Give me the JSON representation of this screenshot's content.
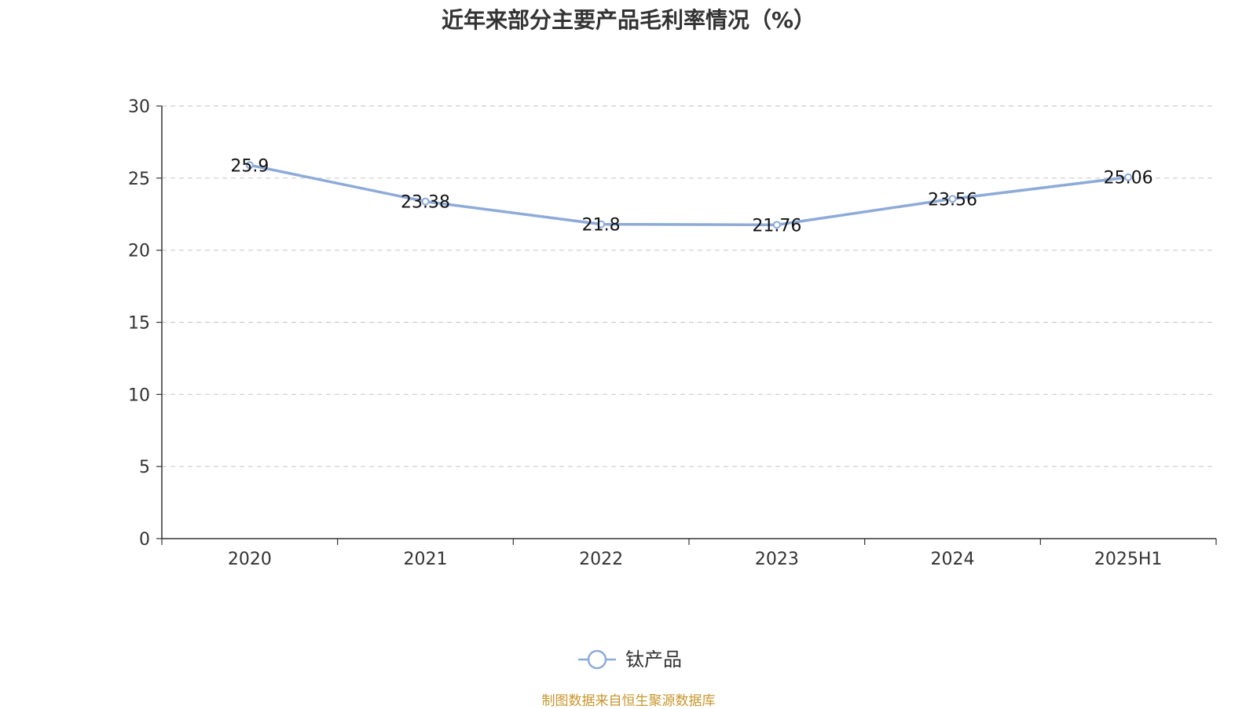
{
  "title": "近年来部分主要产品毛利率情况（%）",
  "source": "制图数据来自恒生聚源数据库",
  "chart_data": {
    "type": "line",
    "title": "近年来部分主要产品毛利率情况（%）",
    "categories": [
      "2020",
      "2021",
      "2022",
      "2023",
      "2024",
      "2025H1"
    ],
    "series": [
      {
        "name": "钛产品",
        "values": [
          25.9,
          23.38,
          21.8,
          21.76,
          23.56,
          25.06
        ],
        "color": "#8eabd8"
      }
    ],
    "data_labels": [
      "25.9",
      "23.38",
      "21.8",
      "21.76",
      "23.56",
      "25.06"
    ],
    "y_ticks": [
      "0",
      "5",
      "10",
      "15",
      "20",
      "25",
      "30"
    ],
    "ylim": [
      0,
      30
    ],
    "grid": "horizontal dashed",
    "legend_position": "bottom-center"
  }
}
